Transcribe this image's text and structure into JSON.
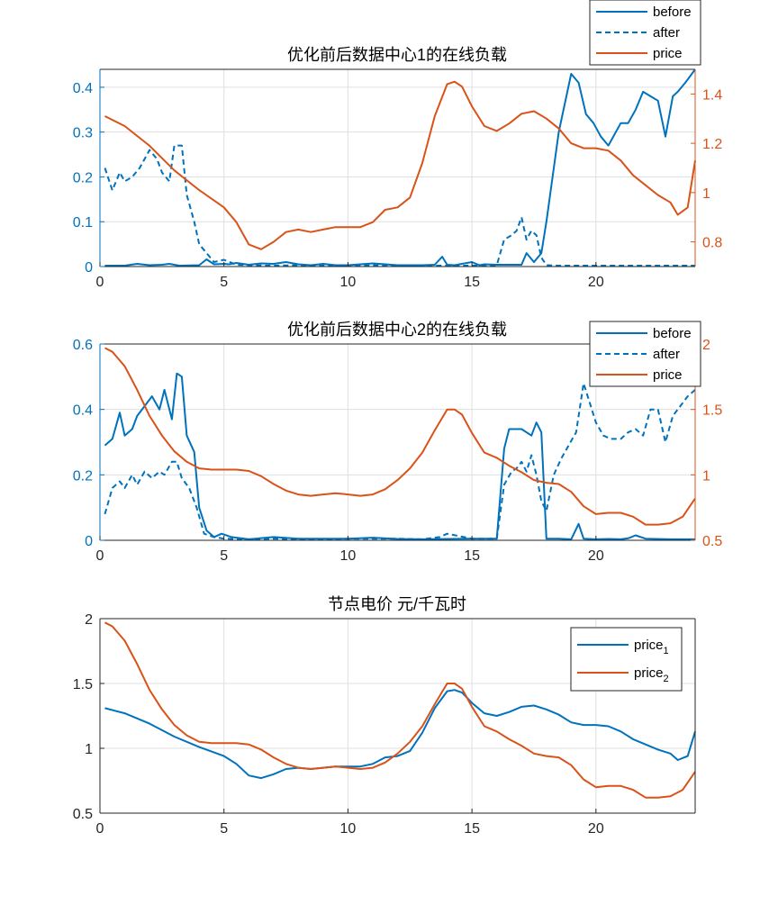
{
  "colors": {
    "blue": "#0072BD",
    "orange": "#D95319",
    "axis": "#262626",
    "grid": "#DFDFDF"
  },
  "chart_data": [
    {
      "type": "line",
      "title": "优化前后数据中心1的在线负载",
      "xlim": [
        0,
        24
      ],
      "xticks": [
        0,
        5,
        10,
        15,
        20
      ],
      "ylim": [
        0,
        0.44
      ],
      "yticks": [
        0,
        0.1,
        0.2,
        0.3,
        0.4
      ],
      "y2lim": [
        0.7,
        1.5
      ],
      "y2ticks": [
        0.8,
        1,
        1.2,
        1.4
      ],
      "grid": true,
      "legend_position": "top-right-outside",
      "series": [
        {
          "name": "before",
          "axis": "left",
          "style": "solid",
          "color": "#0072BD",
          "x": [
            0.2,
            1,
            1.5,
            2,
            2.5,
            2.8,
            3.2,
            4,
            4.3,
            4.6,
            5,
            5.2,
            5.5,
            6,
            6.5,
            7,
            7.5,
            8,
            8.5,
            9,
            9.5,
            10,
            11,
            12,
            13,
            13.5,
            13.8,
            14,
            14.3,
            15,
            15.3,
            15.5,
            16,
            17,
            17.2,
            17.5,
            17.8,
            18,
            18.5,
            19,
            19.3,
            19.6,
            19.9,
            20.2,
            20.5,
            21,
            21.3,
            21.6,
            21.9,
            22.2,
            22.5,
            22.8,
            23.1,
            23.3,
            23.6,
            24
          ],
          "y": [
            0.002,
            0.002,
            0.006,
            0.003,
            0.004,
            0.006,
            0.002,
            0.003,
            0.016,
            0.005,
            0.006,
            0.005,
            0.008,
            0.004,
            0.007,
            0.006,
            0.01,
            0.005,
            0.003,
            0.006,
            0.003,
            0.003,
            0.007,
            0.003,
            0.003,
            0.004,
            0.022,
            0.004,
            0.003,
            0.01,
            0.003,
            0.005,
            0.004,
            0.004,
            0.03,
            0.01,
            0.03,
            0.1,
            0.3,
            0.43,
            0.41,
            0.34,
            0.32,
            0.29,
            0.27,
            0.32,
            0.32,
            0.35,
            0.39,
            0.38,
            0.37,
            0.29,
            0.38,
            0.39,
            0.41,
            0.44
          ]
        },
        {
          "name": "after",
          "axis": "left",
          "style": "dashed",
          "color": "#0072BD",
          "x": [
            0.2,
            0.5,
            0.8,
            1,
            1.3,
            1.6,
            2,
            2.3,
            2.5,
            2.8,
            3,
            3.3,
            3.5,
            3.8,
            4,
            4.3,
            4.6,
            5,
            5.5,
            6,
            7,
            8,
            9,
            10,
            11,
            12,
            13,
            14,
            15,
            15.5,
            16,
            16.3,
            16.6,
            16.8,
            17,
            17.2,
            17.4,
            17.6,
            17.8,
            18,
            18.5,
            19,
            20,
            21,
            22,
            23,
            24
          ],
          "y": [
            0.22,
            0.17,
            0.21,
            0.19,
            0.2,
            0.22,
            0.26,
            0.24,
            0.21,
            0.19,
            0.27,
            0.27,
            0.16,
            0.1,
            0.05,
            0.03,
            0.01,
            0.015,
            0.004,
            0.003,
            0.002,
            0.003,
            0.002,
            0.002,
            0.003,
            0.002,
            0.002,
            0.002,
            0.002,
            0.003,
            0.003,
            0.06,
            0.07,
            0.08,
            0.11,
            0.06,
            0.08,
            0.07,
            0.02,
            0.003,
            0.002,
            0.002,
            0.002,
            0.002,
            0.002,
            0.002,
            0.002
          ]
        },
        {
          "name": "price",
          "axis": "right",
          "style": "solid",
          "color": "#D95319",
          "x": [
            0.2,
            1,
            2,
            3,
            4,
            5,
            5.5,
            6,
            6.5,
            7,
            7.5,
            8,
            8.5,
            9,
            9.5,
            10,
            10.5,
            11,
            11.5,
            12,
            12.5,
            13,
            13.5,
            14,
            14.3,
            14.6,
            15,
            15.5,
            16,
            16.5,
            17,
            17.5,
            18,
            18.5,
            19,
            19.5,
            20,
            20.5,
            21,
            21.5,
            22,
            22.5,
            23,
            23.3,
            23.7,
            24
          ],
          "y": [
            1.31,
            1.27,
            1.19,
            1.09,
            1.01,
            0.94,
            0.88,
            0.79,
            0.77,
            0.8,
            0.84,
            0.85,
            0.84,
            0.85,
            0.86,
            0.86,
            0.86,
            0.88,
            0.93,
            0.94,
            0.98,
            1.12,
            1.31,
            1.44,
            1.45,
            1.43,
            1.35,
            1.27,
            1.25,
            1.28,
            1.32,
            1.33,
            1.3,
            1.26,
            1.2,
            1.18,
            1.18,
            1.17,
            1.13,
            1.07,
            1.03,
            0.99,
            0.96,
            0.91,
            0.94,
            1.13
          ]
        }
      ]
    },
    {
      "type": "line",
      "title": "优化前后数据中心2的在线负载",
      "xlim": [
        0,
        24
      ],
      "xticks": [
        0,
        5,
        10,
        15,
        20
      ],
      "ylim": [
        0,
        0.6
      ],
      "yticks": [
        0,
        0.2,
        0.4,
        0.6
      ],
      "y2lim": [
        0.5,
        2
      ],
      "y2ticks": [
        0.5,
        1,
        1.5,
        2
      ],
      "grid": true,
      "legend_position": "top-right",
      "series": [
        {
          "name": "before",
          "axis": "left",
          "style": "solid",
          "color": "#0072BD",
          "x": [
            0.2,
            0.5,
            0.8,
            1,
            1.3,
            1.5,
            1.8,
            2.1,
            2.4,
            2.6,
            2.9,
            3.1,
            3.3,
            3.5,
            3.8,
            4,
            4.3,
            4.6,
            4.9,
            5.3,
            6,
            7,
            8,
            9,
            10,
            11,
            12,
            13,
            14,
            15,
            16,
            16.3,
            16.5,
            17,
            17.4,
            17.6,
            17.8,
            18,
            18.5,
            19,
            19.3,
            19.5,
            20,
            20.5,
            21,
            21.3,
            21.6,
            22,
            23,
            24
          ],
          "y": [
            0.29,
            0.31,
            0.39,
            0.32,
            0.34,
            0.38,
            0.41,
            0.44,
            0.4,
            0.46,
            0.37,
            0.51,
            0.5,
            0.32,
            0.27,
            0.1,
            0.03,
            0.01,
            0.02,
            0.01,
            0.003,
            0.01,
            0.005,
            0.005,
            0.005,
            0.008,
            0.004,
            0.003,
            0.004,
            0.005,
            0.005,
            0.28,
            0.34,
            0.34,
            0.32,
            0.36,
            0.33,
            0.005,
            0.005,
            0.003,
            0.05,
            0.005,
            0.003,
            0.004,
            0.003,
            0.006,
            0.015,
            0.005,
            0.003,
            0.003
          ]
        },
        {
          "name": "after",
          "axis": "left",
          "style": "dashed",
          "color": "#0072BD",
          "x": [
            0.2,
            0.5,
            0.8,
            1,
            1.3,
            1.5,
            1.8,
            2.1,
            2.4,
            2.6,
            2.9,
            3.1,
            3.3,
            3.6,
            3.9,
            4.2,
            4.6,
            5,
            6,
            7,
            8,
            9,
            10,
            11,
            12,
            13,
            13.7,
            14,
            15,
            16,
            16.3,
            16.6,
            16.8,
            17,
            17.2,
            17.4,
            17.6,
            17.8,
            18,
            18.3,
            18.6,
            18.9,
            19.2,
            19.5,
            20,
            20.3,
            20.6,
            21,
            21.3,
            21.6,
            21.9,
            22.2,
            22.5,
            22.8,
            23.1,
            23.4,
            23.7,
            24
          ],
          "y": [
            0.08,
            0.16,
            0.18,
            0.16,
            0.2,
            0.17,
            0.21,
            0.19,
            0.21,
            0.2,
            0.24,
            0.24,
            0.19,
            0.16,
            0.1,
            0.02,
            0.01,
            0.005,
            0.003,
            0.005,
            0.003,
            0.003,
            0.005,
            0.005,
            0.005,
            0.003,
            0.01,
            0.02,
            0.005,
            0.005,
            0.17,
            0.21,
            0.22,
            0.24,
            0.21,
            0.26,
            0.2,
            0.12,
            0.09,
            0.2,
            0.25,
            0.29,
            0.33,
            0.48,
            0.36,
            0.32,
            0.31,
            0.31,
            0.33,
            0.34,
            0.32,
            0.4,
            0.4,
            0.3,
            0.38,
            0.41,
            0.44,
            0.46
          ]
        },
        {
          "name": "price",
          "axis": "right",
          "style": "solid",
          "color": "#D95319",
          "x": [
            0.2,
            0.5,
            1,
            1.5,
            2,
            2.5,
            3,
            3.5,
            4,
            4.5,
            5,
            5.5,
            6,
            6.5,
            7,
            7.5,
            8,
            8.5,
            9,
            9.5,
            10,
            10.5,
            11,
            11.5,
            12,
            12.5,
            13,
            13.5,
            14,
            14.3,
            14.6,
            15,
            15.5,
            16,
            16.5,
            17,
            17.5,
            18,
            18.5,
            19,
            19.5,
            20,
            20.5,
            21,
            21.5,
            22,
            22.5,
            23,
            23.5,
            24
          ],
          "y": [
            1.97,
            1.94,
            1.83,
            1.65,
            1.45,
            1.3,
            1.18,
            1.1,
            1.05,
            1.04,
            1.04,
            1.04,
            1.03,
            0.99,
            0.93,
            0.88,
            0.85,
            0.84,
            0.85,
            0.86,
            0.85,
            0.84,
            0.85,
            0.89,
            0.96,
            1.05,
            1.17,
            1.34,
            1.5,
            1.5,
            1.46,
            1.32,
            1.17,
            1.13,
            1.07,
            1.02,
            0.96,
            0.94,
            0.93,
            0.87,
            0.76,
            0.7,
            0.71,
            0.71,
            0.68,
            0.62,
            0.62,
            0.63,
            0.68,
            0.82
          ]
        }
      ]
    },
    {
      "type": "line",
      "title": "节点电价 元/千瓦时",
      "xlim": [
        0,
        24
      ],
      "xticks": [
        0,
        5,
        10,
        15,
        20
      ],
      "ylim": [
        0.5,
        2
      ],
      "yticks": [
        0.5,
        1,
        1.5,
        2
      ],
      "grid": true,
      "legend_position": "top-right",
      "series": [
        {
          "name": "price",
          "sub": "1",
          "axis": "left",
          "style": "solid",
          "color": "#0072BD",
          "x": [
            0.2,
            1,
            2,
            3,
            4,
            5,
            5.5,
            6,
            6.5,
            7,
            7.5,
            8,
            8.5,
            9,
            9.5,
            10,
            10.5,
            11,
            11.5,
            12,
            12.5,
            13,
            13.5,
            14,
            14.3,
            14.6,
            15,
            15.5,
            16,
            16.5,
            17,
            17.5,
            18,
            18.5,
            19,
            19.5,
            20,
            20.5,
            21,
            21.5,
            22,
            22.5,
            23,
            23.3,
            23.7,
            24
          ],
          "y": [
            1.31,
            1.27,
            1.19,
            1.09,
            1.01,
            0.94,
            0.88,
            0.79,
            0.77,
            0.8,
            0.84,
            0.85,
            0.84,
            0.85,
            0.86,
            0.86,
            0.86,
            0.88,
            0.93,
            0.94,
            0.98,
            1.12,
            1.31,
            1.44,
            1.45,
            1.43,
            1.35,
            1.27,
            1.25,
            1.28,
            1.32,
            1.33,
            1.3,
            1.26,
            1.2,
            1.18,
            1.18,
            1.17,
            1.13,
            1.07,
            1.03,
            0.99,
            0.96,
            0.91,
            0.94,
            1.13
          ]
        },
        {
          "name": "price",
          "sub": "2",
          "axis": "left",
          "style": "solid",
          "color": "#D95319",
          "x": [
            0.2,
            0.5,
            1,
            1.5,
            2,
            2.5,
            3,
            3.5,
            4,
            4.5,
            5,
            5.5,
            6,
            6.5,
            7,
            7.5,
            8,
            8.5,
            9,
            9.5,
            10,
            10.5,
            11,
            11.5,
            12,
            12.5,
            13,
            13.5,
            14,
            14.3,
            14.6,
            15,
            15.5,
            16,
            16.5,
            17,
            17.5,
            18,
            18.5,
            19,
            19.5,
            20,
            20.5,
            21,
            21.5,
            22,
            22.5,
            23,
            23.5,
            24
          ],
          "y": [
            1.97,
            1.94,
            1.83,
            1.65,
            1.45,
            1.3,
            1.18,
            1.1,
            1.05,
            1.04,
            1.04,
            1.04,
            1.03,
            0.99,
            0.93,
            0.88,
            0.85,
            0.84,
            0.85,
            0.86,
            0.85,
            0.84,
            0.85,
            0.89,
            0.96,
            1.05,
            1.17,
            1.34,
            1.5,
            1.5,
            1.46,
            1.32,
            1.17,
            1.13,
            1.07,
            1.02,
            0.96,
            0.94,
            0.93,
            0.87,
            0.76,
            0.7,
            0.71,
            0.71,
            0.68,
            0.62,
            0.62,
            0.63,
            0.68,
            0.82
          ]
        }
      ]
    }
  ]
}
